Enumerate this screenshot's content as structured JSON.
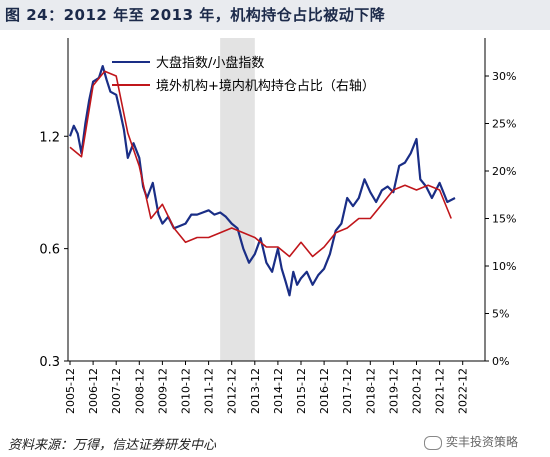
{
  "title": "图 24：2012 年至 2013 年，机构持仓占比被动下降",
  "source": "资料来源：万得，信达证券研发中心",
  "watermark": "奕丰投资策略",
  "colors": {
    "title_bg": "#e9ebef",
    "series_index": "#1a2e86",
    "series_holding": "#c0161b",
    "shade": "#e3e3e3"
  },
  "chart_data": {
    "type": "line",
    "x_tick_labels": [
      "2005-12",
      "2006-12",
      "2007-12",
      "2008-12",
      "2009-12",
      "2010-12",
      "2011-12",
      "2012-12",
      "2013-12",
      "2014-12",
      "2015-12",
      "2016-12",
      "2017-12",
      "2018-12",
      "2019-12",
      "2020-12",
      "2021-12",
      "2022-12"
    ],
    "shaded_period": [
      "2012-06",
      "2013-12"
    ],
    "left_axis": {
      "scale": "log",
      "range": [
        0.3,
        2.2
      ],
      "ticks": [
        "0.3",
        "0.6",
        "1.2"
      ]
    },
    "right_axis": {
      "range": [
        0,
        34
      ],
      "ticks": [
        "0%",
        "5%",
        "10%",
        "15%",
        "20%",
        "25%",
        "30%"
      ]
    },
    "series": [
      {
        "name": "大盘指数/小盘指数",
        "axis": "left",
        "points": [
          [
            "2005-12",
            1.2
          ],
          [
            "2006-02",
            1.28
          ],
          [
            "2006-04",
            1.22
          ],
          [
            "2006-06",
            1.08
          ],
          [
            "2006-08",
            1.3
          ],
          [
            "2006-10",
            1.5
          ],
          [
            "2006-12",
            1.68
          ],
          [
            "2007-03",
            1.72
          ],
          [
            "2007-05",
            1.85
          ],
          [
            "2007-07",
            1.7
          ],
          [
            "2007-09",
            1.58
          ],
          [
            "2007-12",
            1.55
          ],
          [
            "2008-02",
            1.4
          ],
          [
            "2008-04",
            1.25
          ],
          [
            "2008-06",
            1.05
          ],
          [
            "2008-09",
            1.15
          ],
          [
            "2008-12",
            1.05
          ],
          [
            "2009-02",
            0.88
          ],
          [
            "2009-04",
            0.82
          ],
          [
            "2009-07",
            0.9
          ],
          [
            "2009-10",
            0.74
          ],
          [
            "2009-12",
            0.7
          ],
          [
            "2010-03",
            0.73
          ],
          [
            "2010-06",
            0.68
          ],
          [
            "2010-09",
            0.69
          ],
          [
            "2010-12",
            0.7
          ],
          [
            "2011-03",
            0.74
          ],
          [
            "2011-06",
            0.74
          ],
          [
            "2011-09",
            0.75
          ],
          [
            "2011-12",
            0.76
          ],
          [
            "2012-03",
            0.74
          ],
          [
            "2012-06",
            0.75
          ],
          [
            "2012-09",
            0.73
          ],
          [
            "2012-12",
            0.7
          ],
          [
            "2013-03",
            0.68
          ],
          [
            "2013-06",
            0.6
          ],
          [
            "2013-09",
            0.55
          ],
          [
            "2013-12",
            0.58
          ],
          [
            "2014-03",
            0.64
          ],
          [
            "2014-06",
            0.55
          ],
          [
            "2014-09",
            0.52
          ],
          [
            "2014-12",
            0.6
          ],
          [
            "2015-02",
            0.53
          ],
          [
            "2015-04",
            0.49
          ],
          [
            "2015-06",
            0.45
          ],
          [
            "2015-08",
            0.52
          ],
          [
            "2015-10",
            0.48
          ],
          [
            "2015-12",
            0.5
          ],
          [
            "2016-03",
            0.52
          ],
          [
            "2016-06",
            0.48
          ],
          [
            "2016-09",
            0.51
          ],
          [
            "2016-12",
            0.53
          ],
          [
            "2017-03",
            0.58
          ],
          [
            "2017-06",
            0.67
          ],
          [
            "2017-09",
            0.7
          ],
          [
            "2017-12",
            0.82
          ],
          [
            "2018-03",
            0.78
          ],
          [
            "2018-06",
            0.82
          ],
          [
            "2018-09",
            0.92
          ],
          [
            "2018-12",
            0.85
          ],
          [
            "2019-03",
            0.8
          ],
          [
            "2019-06",
            0.86
          ],
          [
            "2019-09",
            0.88
          ],
          [
            "2019-12",
            0.85
          ],
          [
            "2020-03",
            1.0
          ],
          [
            "2020-06",
            1.02
          ],
          [
            "2020-09",
            1.08
          ],
          [
            "2020-12",
            1.18
          ],
          [
            "2021-02",
            0.92
          ],
          [
            "2021-05",
            0.88
          ],
          [
            "2021-08",
            0.82
          ],
          [
            "2021-12",
            0.9
          ],
          [
            "2022-04",
            0.8
          ],
          [
            "2022-08",
            0.82
          ]
        ]
      },
      {
        "name": "境外机构+境内机构持仓占比（右轴）",
        "axis": "right",
        "points": [
          [
            "2005-12",
            22.5
          ],
          [
            "2006-06",
            21.5
          ],
          [
            "2006-12",
            29.0
          ],
          [
            "2007-06",
            30.5
          ],
          [
            "2007-12",
            30.0
          ],
          [
            "2008-06",
            24.0
          ],
          [
            "2008-12",
            20.5
          ],
          [
            "2009-06",
            15.0
          ],
          [
            "2009-12",
            16.5
          ],
          [
            "2010-06",
            14.0
          ],
          [
            "2010-12",
            12.5
          ],
          [
            "2011-06",
            13.0
          ],
          [
            "2011-12",
            13.0
          ],
          [
            "2012-06",
            13.5
          ],
          [
            "2012-12",
            14.0
          ],
          [
            "2013-06",
            13.5
          ],
          [
            "2013-12",
            13.0
          ],
          [
            "2014-06",
            12.0
          ],
          [
            "2014-12",
            12.0
          ],
          [
            "2015-06",
            11.0
          ],
          [
            "2015-12",
            12.5
          ],
          [
            "2016-06",
            11.0
          ],
          [
            "2016-12",
            12.0
          ],
          [
            "2017-06",
            13.5
          ],
          [
            "2017-12",
            14.0
          ],
          [
            "2018-06",
            15.0
          ],
          [
            "2018-12",
            15.0
          ],
          [
            "2019-06",
            16.5
          ],
          [
            "2019-12",
            18.0
          ],
          [
            "2020-06",
            18.5
          ],
          [
            "2020-12",
            18.0
          ],
          [
            "2021-06",
            18.5
          ],
          [
            "2021-12",
            18.0
          ],
          [
            "2022-06",
            15.0
          ]
        ]
      }
    ]
  }
}
